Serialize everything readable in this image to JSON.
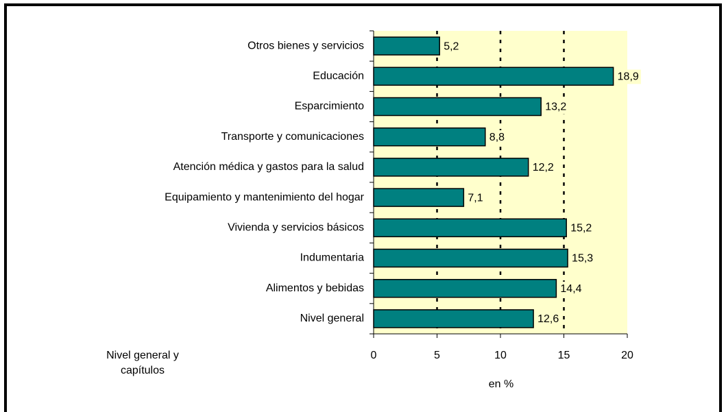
{
  "chart_data": {
    "type": "bar",
    "orientation": "horizontal",
    "categories": [
      "Otros bienes y servicios",
      "Educación",
      "Esparcimiento",
      "Transporte y comunicaciones",
      "Atención médica y gastos para la salud",
      "Equipamiento y mantenimiento del hogar",
      "Vivienda y servicios básicos",
      "Indumentaria",
      "Alimentos y bebidas",
      "Nivel general"
    ],
    "values": [
      5.2,
      18.9,
      13.2,
      8.8,
      12.2,
      7.1,
      15.2,
      15.3,
      14.4,
      12.6
    ],
    "value_labels": [
      "5,2",
      "18,9",
      "13,2",
      "8,8",
      "12,2",
      "7,1",
      "15,2",
      "15,3",
      "14,4",
      "12,6"
    ],
    "color": "#008080",
    "xlim": [
      0,
      20
    ],
    "xticks": [
      0,
      5,
      10,
      15,
      20
    ],
    "grid": true,
    "xlabel": "en %",
    "ylabel": "Nivel general y capítulos"
  }
}
